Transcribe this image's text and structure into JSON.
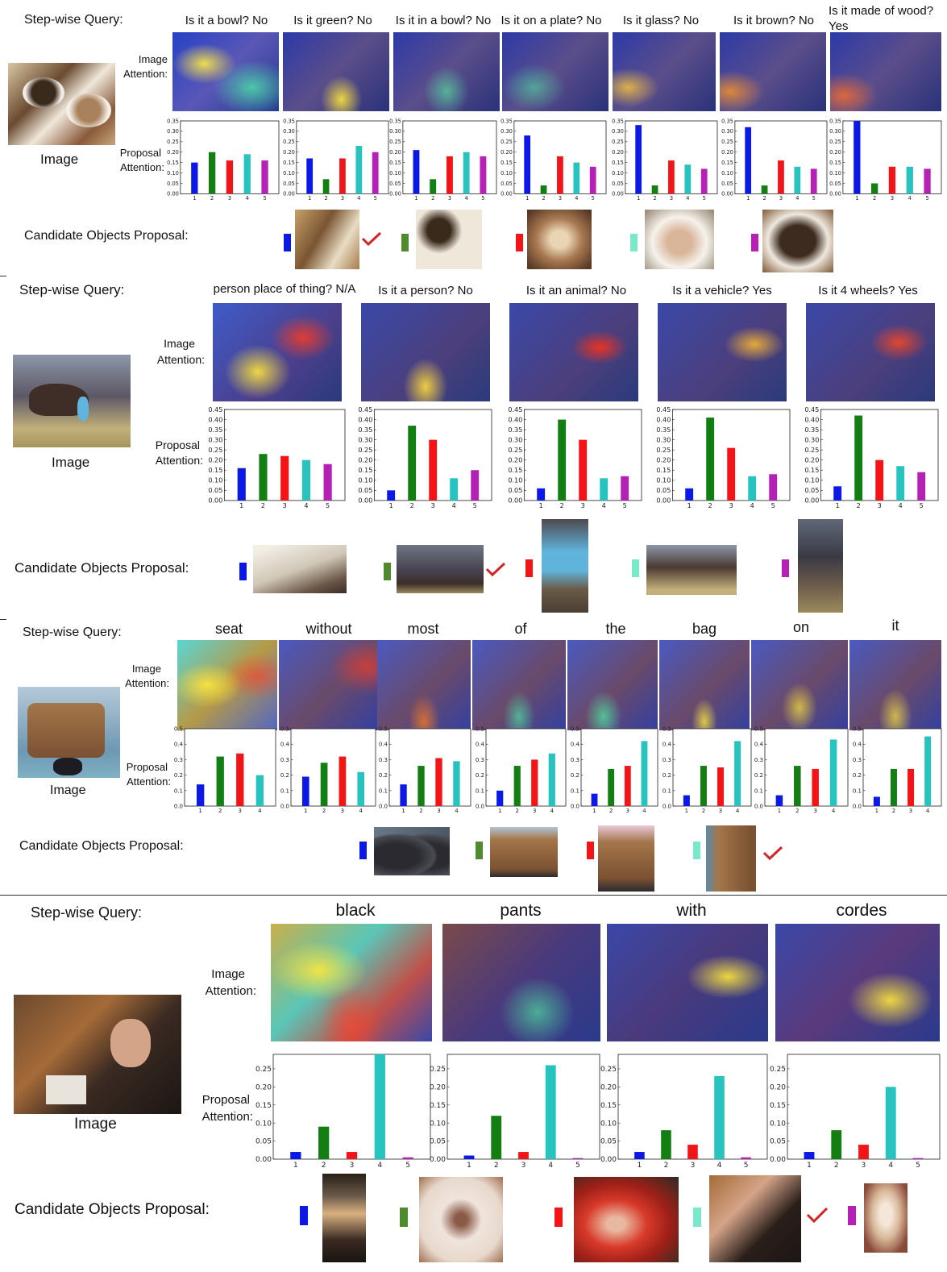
{
  "labels": {
    "query": "Step-wise Query:",
    "image_attention": [
      "Image",
      "Attention:"
    ],
    "proposal_attention": [
      "Proposal",
      "Attention:"
    ],
    "image": "Image",
    "candidates": "Candidate Objects Proposal:"
  },
  "colors": {
    "blue": "#0b18e6",
    "green": "#137f13",
    "red": "#f31418",
    "cyan": "#27c3bf",
    "magenta": "#b421b4",
    "teal_swatch": "#79eac9",
    "check": "#d62424"
  },
  "panels": [
    {
      "id": "bowls",
      "queries": [
        "Is it a bowl? No",
        "Is it green? No",
        "Is it in a bowl? No",
        "Is it on a plate? No",
        "Is it glass? No",
        "Is it brown? No",
        "Is it made of wood? Yes"
      ],
      "chart_data": {
        "type": "bar",
        "categories": [
          "1",
          "2",
          "3",
          "4",
          "5"
        ],
        "ylim": [
          0,
          0.35
        ],
        "yticks": [
          "0.00",
          "0.05",
          "0.10",
          "0.15",
          "0.20",
          "0.25",
          "0.30",
          "0.35"
        ],
        "steps": [
          [
            0.15,
            0.2,
            0.16,
            0.19,
            0.16
          ],
          [
            0.17,
            0.07,
            0.17,
            0.23,
            0.2
          ],
          [
            0.21,
            0.07,
            0.18,
            0.2,
            0.18
          ],
          [
            0.28,
            0.04,
            0.18,
            0.15,
            0.13
          ],
          [
            0.33,
            0.04,
            0.16,
            0.14,
            0.12
          ],
          [
            0.32,
            0.04,
            0.16,
            0.13,
            0.12
          ],
          [
            0.35,
            0.05,
            0.13,
            0.13,
            0.12
          ]
        ]
      },
      "candidates": [
        {
          "swatch": "blue",
          "checked": true
        },
        {
          "swatch": "green",
          "checked": false
        },
        {
          "swatch": "red",
          "checked": false
        },
        {
          "swatch": "teal",
          "checked": false
        },
        {
          "swatch": "magenta",
          "checked": false
        }
      ]
    },
    {
      "id": "horse",
      "queries": [
        "person place of thing? N/A",
        "Is it a person? No",
        "Is it an animal? No",
        "Is it a vehicle? Yes",
        "Is it 4 wheels? Yes"
      ],
      "chart_data": {
        "type": "bar",
        "categories": [
          "1",
          "2",
          "3",
          "4",
          "5"
        ],
        "ylim": [
          0,
          0.45
        ],
        "yticks": [
          "0.00",
          "0.05",
          "0.10",
          "0.15",
          "0.20",
          "0.25",
          "0.30",
          "0.35",
          "0.40",
          "0.45"
        ],
        "steps": [
          [
            0.16,
            0.23,
            0.22,
            0.2,
            0.18
          ],
          [
            0.05,
            0.37,
            0.3,
            0.11,
            0.15
          ],
          [
            0.06,
            0.4,
            0.3,
            0.11,
            0.12
          ],
          [
            0.06,
            0.41,
            0.26,
            0.12,
            0.13
          ],
          [
            0.07,
            0.42,
            0.2,
            0.17,
            0.14
          ]
        ]
      },
      "candidates": [
        {
          "swatch": "blue",
          "checked": false
        },
        {
          "swatch": "green",
          "checked": true
        },
        {
          "swatch": "red",
          "checked": false
        },
        {
          "swatch": "teal",
          "checked": false
        },
        {
          "swatch": "magenta",
          "checked": false
        }
      ]
    },
    {
      "id": "bag",
      "queries": [
        "seat",
        "without",
        "most",
        "of",
        "the",
        "bag",
        "on",
        "it"
      ],
      "chart_data": {
        "type": "bar",
        "categories": [
          "1",
          "2",
          "3",
          "4"
        ],
        "ylim": [
          0,
          0.5
        ],
        "yticks": [
          "0.0",
          "0.1",
          "0.2",
          "0.3",
          "0.4",
          "0.5"
        ],
        "steps": [
          [
            0.14,
            0.32,
            0.34,
            0.2
          ],
          [
            0.19,
            0.28,
            0.32,
            0.22
          ],
          [
            0.14,
            0.26,
            0.31,
            0.29
          ],
          [
            0.1,
            0.26,
            0.3,
            0.34
          ],
          [
            0.08,
            0.24,
            0.26,
            0.42
          ],
          [
            0.07,
            0.26,
            0.25,
            0.42
          ],
          [
            0.07,
            0.26,
            0.24,
            0.43
          ],
          [
            0.06,
            0.24,
            0.24,
            0.45
          ]
        ]
      },
      "candidates": [
        {
          "swatch": "blue",
          "checked": false
        },
        {
          "swatch": "green",
          "checked": false
        },
        {
          "swatch": "red",
          "checked": false
        },
        {
          "swatch": "teal",
          "checked": true
        }
      ]
    },
    {
      "id": "restaurant",
      "queries": [
        "black",
        "pants",
        "with",
        "cordes"
      ],
      "chart_data": {
        "type": "bar",
        "categories": [
          "1",
          "2",
          "3",
          "4",
          "5"
        ],
        "ylim": [
          0,
          0.29
        ],
        "yticks": [
          "0.00",
          "0.05",
          "0.10",
          "0.15",
          "0.20",
          "0.25"
        ],
        "steps": [
          [
            0.02,
            0.09,
            0.02,
            0.29,
            0.005
          ],
          [
            0.01,
            0.12,
            0.02,
            0.26,
            0.003
          ],
          [
            0.02,
            0.08,
            0.04,
            0.23,
            0.005
          ],
          [
            0.02,
            0.08,
            0.04,
            0.2,
            0.003
          ]
        ]
      },
      "candidates": [
        {
          "swatch": "blue",
          "checked": false
        },
        {
          "swatch": "green",
          "checked": false
        },
        {
          "swatch": "red",
          "checked": false
        },
        {
          "swatch": "teal",
          "checked": true
        },
        {
          "swatch": "magenta",
          "checked": false
        }
      ]
    }
  ]
}
